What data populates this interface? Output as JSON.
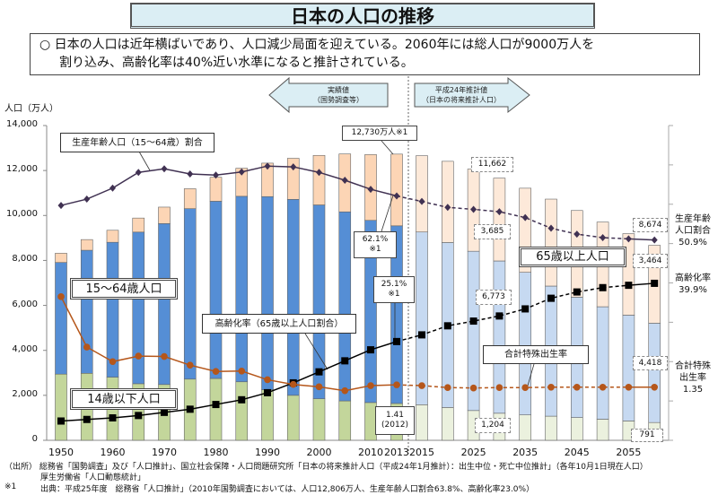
{
  "title": "日本の人口の推移",
  "summary": {
    "line1": "○ 日本の人口は近年横ばいであり、人口減少局面を迎えている。2060年には総人口が9000万人を",
    "line2": "割り込み、高齢化率は40%近い水準になると推計されている。"
  },
  "arrows": {
    "actual": {
      "line1": "実績値",
      "line2": "（国勢調査等）"
    },
    "projection": {
      "line1": "平成24年推計値",
      "line2": "（日本の将来推計人口）"
    }
  },
  "chart_data": {
    "type": "bar",
    "stacked": true,
    "ylabel": "人口（万人）",
    "ylim": [
      0,
      14000
    ],
    "yticks": [
      "0",
      "2,000",
      "4,000",
      "6,000",
      "8,000",
      "10,000",
      "12,000",
      "14,000"
    ],
    "secondary_axis": {
      "unit": "%",
      "range": [
        0,
        80
      ],
      "tick_labels_shown": false
    },
    "categories": [
      1950,
      1955,
      1960,
      1965,
      1970,
      1975,
      1980,
      1985,
      1990,
      1995,
      2000,
      2005,
      2010,
      2013,
      2015,
      2020,
      2025,
      2030,
      2035,
      2040,
      2045,
      2050,
      2055,
      2060
    ],
    "xtick_labels": [
      "1950",
      "1960",
      "1970",
      "1980",
      "1990",
      "2000",
      "2010",
      "2013",
      "2015",
      "2025",
      "2035",
      "2045",
      "2055"
    ],
    "projection_start": 2015,
    "series": [
      {
        "name": "14歳以下人口",
        "values": [
          2943,
          2980,
          2807,
          2517,
          2482,
          2722,
          2751,
          2603,
          2249,
          2001,
          1847,
          1752,
          1680,
          1639,
          1583,
          1457,
          1324,
          1204,
          1129,
          1073,
          1012,
          939,
          861,
          791
        ],
        "color": "#c3d69b",
        "projection_color": "#ebf1de"
      },
      {
        "name": "15～64歳人口",
        "values": [
          4966,
          5473,
          6000,
          6744,
          7157,
          7581,
          7883,
          8251,
          8590,
          8716,
          8622,
          8409,
          8103,
          7901,
          7682,
          7341,
          7085,
          6773,
          6343,
          5787,
          5353,
          5001,
          4706,
          4418
        ],
        "color": "#558ed5",
        "projection_color": "#c6d9f1"
      },
      {
        "name": "65歳以上人口",
        "values": [
          411,
          475,
          535,
          624,
          733,
          887,
          1065,
          1247,
          1489,
          1826,
          2204,
          2576,
          2925,
          3190,
          3395,
          3612,
          3657,
          3685,
          3741,
          3868,
          3856,
          3768,
          3626,
          3464
        ],
        "color": "#fcd5b5",
        "projection_color": "#fde9d9"
      }
    ],
    "lines": [
      {
        "name": "生産年齢人口（15～64歳）割合",
        "unit": "%",
        "values": [
          59.7,
          61.3,
          64.1,
          68.1,
          69.0,
          67.7,
          67.4,
          68.2,
          69.7,
          69.5,
          68.1,
          66.1,
          63.8,
          62.1,
          60.7,
          59.2,
          58.7,
          58.1,
          56.6,
          53.9,
          52.4,
          51.5,
          51.2,
          50.9
        ],
        "color": "#403152",
        "marker": "diamond"
      },
      {
        "name": "高齢化率（65歳以上人口割合）",
        "unit": "%",
        "values": [
          4.9,
          5.3,
          5.7,
          6.3,
          7.1,
          7.9,
          9.1,
          10.3,
          12.1,
          14.6,
          17.4,
          20.2,
          23.0,
          25.1,
          26.8,
          29.1,
          30.3,
          31.6,
          33.4,
          36.1,
          37.7,
          38.8,
          39.4,
          39.9
        ],
        "color": "#000000",
        "marker": "square"
      },
      {
        "name": "合計特殊出生率",
        "unit": "",
        "scale_factor_to_secondary": 10,
        "values": [
          3.65,
          2.37,
          2.0,
          2.14,
          2.13,
          1.91,
          1.75,
          1.76,
          1.54,
          1.42,
          1.36,
          1.26,
          1.39,
          1.41,
          1.39,
          1.34,
          1.33,
          1.34,
          1.34,
          1.35,
          1.35,
          1.35,
          1.35,
          1.35
        ],
        "color": "#b5561a",
        "marker": "circle"
      }
    ]
  },
  "annotations": {
    "working_ratio_label": "生産年齢人口（15～64歳）割合",
    "total_2013": "12,730万人※1",
    "working_2013": {
      "line1": "62.1%",
      "line2": "※1"
    },
    "aging_2013": {
      "line1": "25.1%",
      "line2": "※1"
    },
    "age15_64_label": "15～64歳人口",
    "aging_label": "高齢化率（65歳以上人口割合）",
    "age0_14_label": "14歳以下人口",
    "tfr_2012": {
      "line1": "1.41",
      "line2": "(2012)"
    },
    "total_2030": "11,662",
    "elderly_2030": "3,685",
    "working_2030": "6,773",
    "child_2030": "1,204",
    "total_2060": "8,674",
    "elderly_2060": "3,464",
    "working_2060": "4,418",
    "child_2060": "791",
    "age65_label": "65歳以上人口",
    "tfr_label": "合計特殊出生率",
    "right_working": {
      "line1": "生産年齢",
      "line2": "人口割合",
      "line3": "50.9%"
    },
    "right_aging": {
      "line1": "高齢化率",
      "line2": "39.9%"
    },
    "right_tfr": {
      "line1": "合計特殊",
      "line2": "出生率",
      "line3": "1.35"
    }
  },
  "footnotes": {
    "line1": "（出所） 総務省「国勢調査」及び「人口推計」、国立社会保障・人口問題研究所「日本の将来推計人口（平成24年1月推計）：出生中位・死亡中位推計」（各年10月1日現在人口）",
    "line2": "厚生労働省「人口動態統計」",
    "line3_mark": "※1",
    "line3": "出典：平成25年度　総務省「人口推計」（2010年国勢調査においては、人口12,806万人、生産年齢人口割合63.8%、高齢化率23.0%）"
  }
}
